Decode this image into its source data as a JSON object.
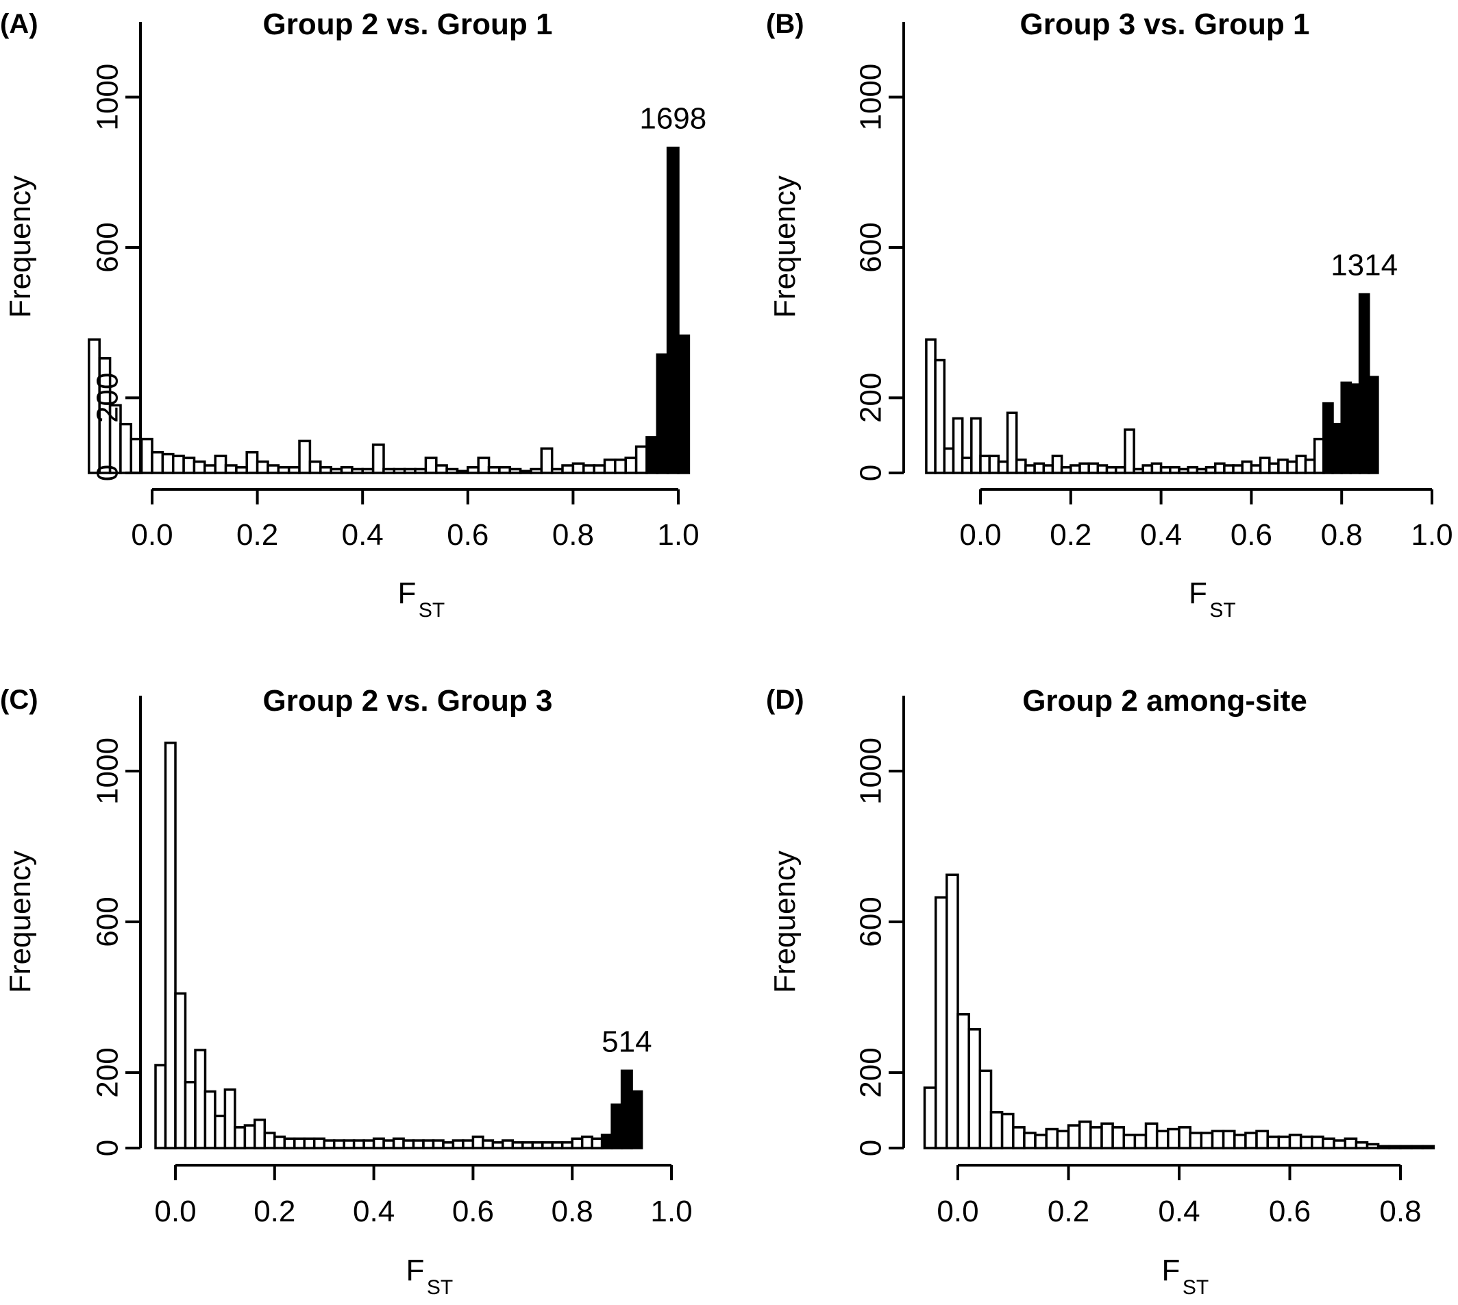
{
  "chart_data": [
    {
      "type": "bar",
      "panel_label": "(A)",
      "title": "Group 2 vs. Group 1",
      "ylabel": "Frequency",
      "xlabel_main": "F",
      "xlabel_sub": "ST",
      "xlim": [
        -0.13,
        1.0
      ],
      "ylim": [
        0,
        1200
      ],
      "xticks": [
        "0.0",
        "0.2",
        "0.4",
        "0.6",
        "0.8",
        "1.0"
      ],
      "yticks": [
        "0",
        "200",
        "600",
        "1000"
      ],
      "bin_start": -0.12,
      "bin_width": 0.02,
      "counts": [
        355,
        305,
        180,
        130,
        90,
        90,
        55,
        50,
        45,
        40,
        30,
        20,
        45,
        20,
        15,
        55,
        30,
        20,
        15,
        15,
        85,
        30,
        15,
        10,
        15,
        10,
        10,
        75,
        10,
        10,
        10,
        10,
        40,
        20,
        10,
        5,
        15,
        40,
        15,
        15,
        10,
        5,
        10,
        65,
        10,
        20,
        25,
        20,
        20,
        35,
        35,
        40,
        70,
        95,
        315,
        865,
        365
      ],
      "highlight_from_index": 53,
      "annotation": "1698"
    },
    {
      "type": "bar",
      "panel_label": "(B)",
      "title": "Group 3 vs. Group 1",
      "ylabel": "Frequency",
      "xlabel_main": "F",
      "xlabel_sub": "ST",
      "xlim": [
        -0.13,
        1.0
      ],
      "ylim": [
        0,
        1200
      ],
      "xticks": [
        "0.0",
        "0.2",
        "0.4",
        "0.6",
        "0.8",
        "1.0"
      ],
      "yticks": [
        "0",
        "200",
        "600",
        "1000"
      ],
      "bin_start": -0.12,
      "bin_width": 0.02,
      "counts": [
        355,
        300,
        65,
        145,
        40,
        145,
        45,
        45,
        30,
        160,
        35,
        20,
        25,
        20,
        45,
        15,
        20,
        25,
        25,
        20,
        15,
        15,
        115,
        10,
        20,
        25,
        15,
        15,
        10,
        15,
        10,
        15,
        25,
        20,
        20,
        30,
        20,
        40,
        25,
        35,
        30,
        45,
        35,
        90,
        185,
        130,
        240,
        235,
        475,
        255
      ],
      "highlight_from_index": 44,
      "annotation": "1314"
    },
    {
      "type": "bar",
      "panel_label": "(C)",
      "title": "Group 2 vs. Group 3",
      "ylabel": "Frequency",
      "xlabel_main": "F",
      "xlabel_sub": "ST",
      "xlim": [
        -0.04,
        1.0
      ],
      "ylim": [
        0,
        1200
      ],
      "xticks": [
        "0.0",
        "0.2",
        "0.4",
        "0.6",
        "0.8",
        "1.0"
      ],
      "yticks": [
        "0",
        "200",
        "600",
        "1000"
      ],
      "bin_start": -0.04,
      "bin_width": 0.02,
      "counts": [
        220,
        1075,
        410,
        175,
        260,
        150,
        85,
        155,
        55,
        60,
        75,
        40,
        30,
        25,
        25,
        25,
        25,
        20,
        20,
        20,
        20,
        20,
        25,
        20,
        25,
        20,
        20,
        20,
        20,
        15,
        20,
        20,
        30,
        20,
        15,
        20,
        15,
        15,
        15,
        15,
        15,
        15,
        25,
        30,
        25,
        35,
        115,
        205,
        150
      ],
      "highlight_from_index": 45,
      "annotation": "514"
    },
    {
      "type": "bar",
      "panel_label": "(D)",
      "title": "Group 2 among-site",
      "ylabel": "Frequency",
      "xlabel_main": "F",
      "xlabel_sub": "ST",
      "xlim": [
        -0.08,
        0.86
      ],
      "ylim": [
        0,
        1200
      ],
      "xticks": [
        "0.0",
        "0.2",
        "0.4",
        "0.6",
        "0.8"
      ],
      "yticks": [
        "0",
        "200",
        "600",
        "1000"
      ],
      "bin_start": -0.06,
      "bin_width": 0.02,
      "counts": [
        160,
        665,
        725,
        355,
        315,
        205,
        95,
        90,
        55,
        40,
        35,
        50,
        45,
        60,
        70,
        55,
        65,
        55,
        35,
        35,
        65,
        45,
        50,
        55,
        40,
        40,
        45,
        45,
        35,
        40,
        45,
        30,
        30,
        35,
        30,
        30,
        25,
        20,
        25,
        15,
        10,
        5,
        5,
        5,
        5,
        5
      ],
      "highlight_from_index": -1,
      "annotation": ""
    }
  ]
}
